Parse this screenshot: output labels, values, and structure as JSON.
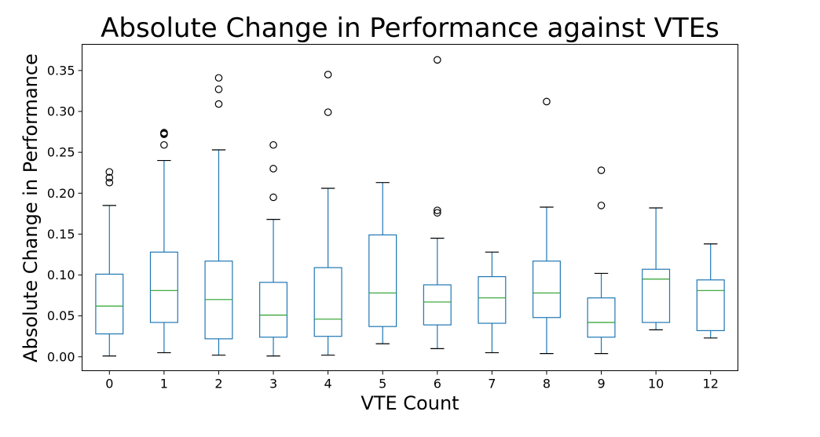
{
  "chart_data": {
    "type": "box",
    "title": "Absolute Change in Performance against VTEs",
    "xlabel": "VTE Count",
    "ylabel": "Absolute Change in Performance",
    "ylim": [
      -0.017,
      0.382
    ],
    "yticks": [
      "0.00",
      "0.05",
      "0.10",
      "0.15",
      "0.20",
      "0.25",
      "0.30",
      "0.35"
    ],
    "grid": false,
    "colors": {
      "box": "#1f77b4",
      "median": "#2ca02c",
      "whisker": "#1f77b4",
      "cap": "#000000",
      "flier": "#000000"
    },
    "boxes": [
      {
        "category": "0",
        "whisker_low": 0.001,
        "q1": 0.028,
        "median": 0.062,
        "q3": 0.101,
        "whisker_high": 0.185,
        "fliers": [
          0.213,
          0.219,
          0.226
        ]
      },
      {
        "category": "1",
        "whisker_low": 0.005,
        "q1": 0.042,
        "median": 0.081,
        "q3": 0.128,
        "whisker_high": 0.24,
        "fliers": [
          0.259,
          0.272,
          0.273,
          0.274
        ]
      },
      {
        "category": "2",
        "whisker_low": 0.002,
        "q1": 0.022,
        "median": 0.07,
        "q3": 0.117,
        "whisker_high": 0.253,
        "fliers": [
          0.309,
          0.327,
          0.341
        ]
      },
      {
        "category": "3",
        "whisker_low": 0.001,
        "q1": 0.024,
        "median": 0.051,
        "q3": 0.091,
        "whisker_high": 0.168,
        "fliers": [
          0.195,
          0.23,
          0.259
        ]
      },
      {
        "category": "4",
        "whisker_low": 0.002,
        "q1": 0.025,
        "median": 0.046,
        "q3": 0.109,
        "whisker_high": 0.206,
        "fliers": [
          0.299,
          0.345
        ]
      },
      {
        "category": "5",
        "whisker_low": 0.016,
        "q1": 0.037,
        "median": 0.078,
        "q3": 0.149,
        "whisker_high": 0.213,
        "fliers": []
      },
      {
        "category": "6",
        "whisker_low": 0.01,
        "q1": 0.039,
        "median": 0.067,
        "q3": 0.088,
        "whisker_high": 0.145,
        "fliers": [
          0.176,
          0.179,
          0.363
        ]
      },
      {
        "category": "7",
        "whisker_low": 0.005,
        "q1": 0.041,
        "median": 0.072,
        "q3": 0.098,
        "whisker_high": 0.128,
        "fliers": []
      },
      {
        "category": "8",
        "whisker_low": 0.004,
        "q1": 0.048,
        "median": 0.078,
        "q3": 0.117,
        "whisker_high": 0.183,
        "fliers": [
          0.312
        ]
      },
      {
        "category": "9",
        "whisker_low": 0.004,
        "q1": 0.024,
        "median": 0.042,
        "q3": 0.072,
        "whisker_high": 0.102,
        "fliers": [
          0.185,
          0.228
        ]
      },
      {
        "category": "10",
        "whisker_low": 0.033,
        "q1": 0.042,
        "median": 0.095,
        "q3": 0.107,
        "whisker_high": 0.182,
        "fliers": []
      },
      {
        "category": "12",
        "whisker_low": 0.023,
        "q1": 0.032,
        "median": 0.081,
        "q3": 0.094,
        "whisker_high": 0.138,
        "fliers": []
      }
    ]
  }
}
